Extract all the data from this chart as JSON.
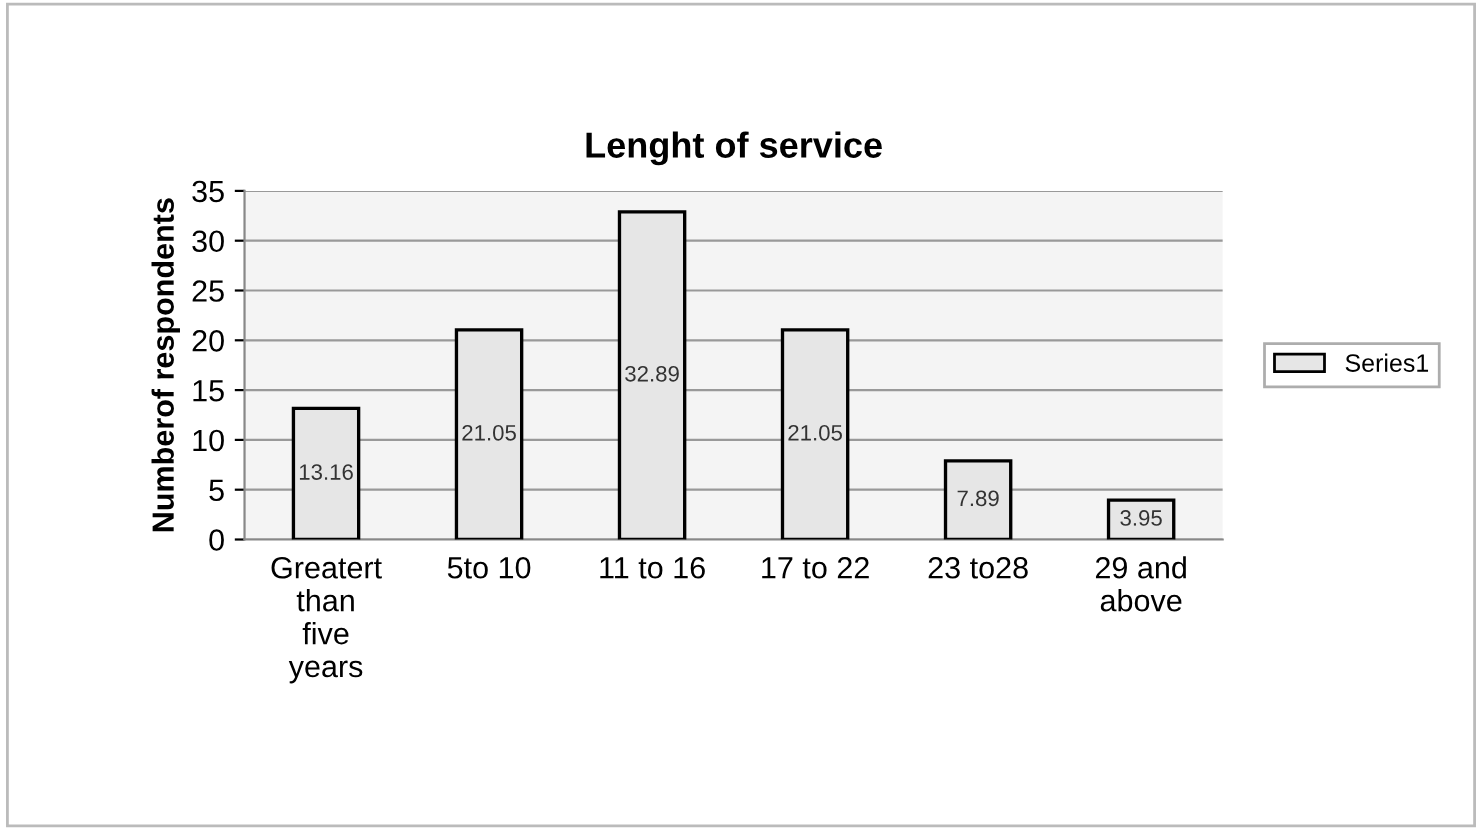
{
  "chart_data": {
    "type": "bar",
    "title": "Lenght of service",
    "ylabel": "Numberof respondents",
    "categories": [
      "Greatert\nthan\nfive\nyears",
      "5to 10",
      "11 to 16",
      "17 to 22",
      "23 to28",
      "29 and\nabove"
    ],
    "series": [
      {
        "name": "Series1",
        "color": "#e6e6e6",
        "values": [
          13.16,
          21.05,
          32.89,
          21.05,
          7.89,
          3.95
        ],
        "value_labels": [
          "13.16",
          "21.05",
          "32.89",
          "21.05",
          "7.89",
          "3.95"
        ]
      }
    ],
    "ylim": [
      0,
      35
    ],
    "yticks": [
      0,
      5,
      10,
      15,
      20,
      25,
      30,
      35
    ],
    "grid": "y",
    "legend": "right"
  }
}
